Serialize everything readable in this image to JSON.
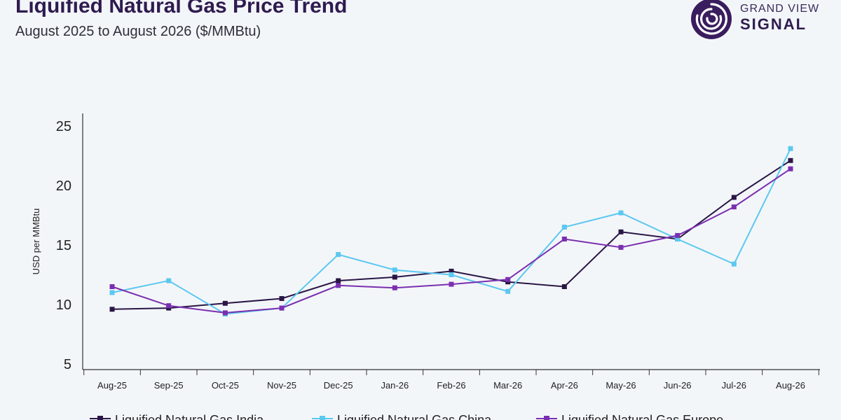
{
  "header": {
    "title": "Liquified Natural Gas Price Trend",
    "subtitle": "August 2025 to August 2026 ($/MMBtu)"
  },
  "logo": {
    "top_text": "GRAND VIEW",
    "bottom_text": "SIGNAL",
    "icon": "signal-swirl-icon"
  },
  "colors": {
    "india": "#2a1645",
    "china": "#5cc8f0",
    "europe": "#7a2fb0",
    "axis": "#333333"
  },
  "chart_data": {
    "type": "line",
    "title": "Liquified Natural Gas Price Trend",
    "subtitle": "August 2025 to August 2026 ($/MMBtu)",
    "xlabel": "",
    "ylabel": "USD per MMBtu",
    "categories": [
      "Aug-25",
      "Sep-25",
      "Oct-25",
      "Nov-25",
      "Dec-25",
      "Jan-26",
      "Feb-26",
      "Mar-26",
      "Apr-26",
      "May-26",
      "Jun-26",
      "Jul-26",
      "Aug-26"
    ],
    "yticks": [
      5,
      10,
      15,
      20,
      25
    ],
    "ylim": [
      5,
      25
    ],
    "grid": false,
    "legend_position": "bottom",
    "series": [
      {
        "name": "Liquified Natural Gas India",
        "color": "#2a1645",
        "values": [
          9.6,
          9.7,
          10.1,
          10.5,
          12.0,
          12.3,
          12.8,
          11.9,
          11.5,
          16.1,
          15.5,
          19.0,
          22.1
        ]
      },
      {
        "name": "Liquified Natural Gas China",
        "color": "#5cc8f0",
        "values": [
          11.0,
          12.0,
          9.2,
          9.7,
          14.2,
          12.9,
          12.5,
          11.1,
          16.5,
          17.7,
          15.5,
          13.4,
          23.1
        ]
      },
      {
        "name": "Liquified Natural Gas Europe",
        "color": "#7a2fb0",
        "values": [
          11.5,
          9.9,
          9.3,
          9.7,
          11.6,
          11.4,
          11.7,
          12.1,
          15.5,
          14.8,
          15.8,
          18.2,
          21.4
        ]
      }
    ]
  }
}
